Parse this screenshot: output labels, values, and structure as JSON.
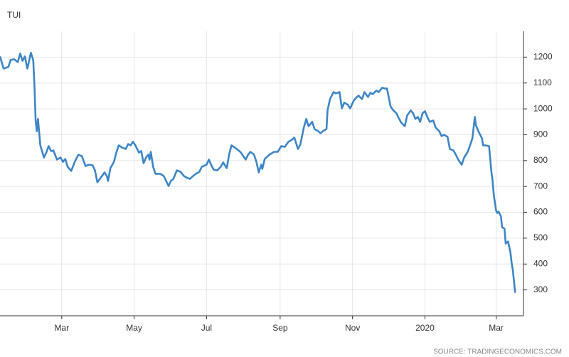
{
  "chart_data": {
    "type": "line",
    "title": "TUI",
    "source": "SOURCE: TRADINGECONOMICS.COM",
    "x": [
      7,
      10,
      14,
      16,
      19,
      22,
      24,
      26,
      28,
      30,
      31,
      33,
      35,
      36,
      37,
      38,
      39,
      41,
      44,
      46,
      48,
      50,
      52,
      55,
      58,
      60,
      62,
      64,
      67,
      70,
      73,
      76,
      79,
      82,
      85,
      87,
      89,
      92,
      95,
      97,
      98,
      100,
      103,
      105,
      107,
      110,
      113,
      115,
      117,
      119,
      121,
      124,
      126,
      128,
      130,
      132,
      133,
      134,
      136,
      138,
      142,
      145,
      147,
      149,
      151,
      153,
      156,
      159,
      162,
      164,
      167,
      169,
      172,
      175,
      177,
      181,
      183,
      185,
      187,
      190,
      193,
      195,
      198,
      200,
      202,
      205,
      208,
      210,
      212,
      214,
      216,
      218,
      221,
      223,
      225,
      227,
      228,
      230,
      234,
      238,
      241,
      244,
      247,
      250,
      253,
      255,
      258,
      260,
      263,
      265,
      267,
      270,
      272,
      275,
      277,
      279,
      282,
      283,
      285,
      288,
      290,
      293,
      295,
      297,
      300,
      302,
      305,
      307,
      309,
      312,
      314,
      317,
      319,
      321,
      324,
      326,
      329,
      331,
      333,
      336,
      338,
      341,
      343,
      345,
      348,
      350,
      353,
      355,
      357,
      359,
      361,
      363,
      365,
      367,
      369,
      372,
      374,
      377,
      379,
      381,
      384,
      386,
      389,
      391,
      393,
      396,
      398,
      401,
      403,
      404,
      405,
      407,
      408,
      410,
      413,
      414,
      416,
      419,
      420,
      421,
      422,
      423,
      425,
      426,
      427,
      429,
      430,
      432,
      433,
      435,
      437,
      438,
      439,
      441
    ],
    "series": [
      {
        "name": "TUI",
        "color": "#3d85c6",
        "values": [
          1203,
          1156,
          1162,
          1189,
          1192,
          1181,
          1214,
          1186,
          1203,
          1156,
          1175,
          1217,
          1189,
          1093,
          955,
          914,
          961,
          859,
          812,
          831,
          856,
          837,
          839,
          804,
          812,
          795,
          806,
          776,
          760,
          795,
          823,
          817,
          779,
          784,
          782,
          762,
          716,
          735,
          754,
          740,
          721,
          771,
          795,
          831,
          859,
          850,
          845,
          864,
          859,
          873,
          859,
          831,
          837,
          790,
          812,
          823,
          804,
          834,
          776,
          749,
          749,
          740,
          721,
          702,
          721,
          729,
          762,
          757,
          740,
          735,
          729,
          738,
          749,
          757,
          776,
          784,
          804,
          782,
          765,
          762,
          776,
          793,
          771,
          823,
          859,
          850,
          839,
          831,
          817,
          804,
          823,
          834,
          823,
          795,
          754,
          784,
          768,
          806,
          823,
          834,
          834,
          856,
          853,
          873,
          881,
          889,
          845,
          862,
          928,
          961,
          933,
          950,
          922,
          914,
          906,
          914,
          922,
          996,
          1038,
          1065,
          1060,
          1065,
          1002,
          1024,
          1016,
          1002,
          1032,
          1043,
          1051,
          1038,
          1065,
          1046,
          1062,
          1057,
          1071,
          1065,
          1082,
          1079,
          1079,
          1010,
          996,
          983,
          963,
          947,
          933,
          974,
          994,
          983,
          961,
          969,
          950,
          983,
          991,
          969,
          950,
          955,
          928,
          914,
          895,
          900,
          892,
          845,
          839,
          823,
          804,
          784,
          812,
          834,
          859,
          873,
          886,
          969,
          936,
          914,
          886,
          859,
          859,
          856,
          804,
          757,
          721,
          666,
          606,
          597,
          603,
          584,
          542,
          537,
          479,
          487,
          446,
          405,
          377,
          289
        ]
      }
    ],
    "xlim": [
      7,
      448
    ],
    "xticks": [
      {
        "value": 59,
        "label": "Mar"
      },
      {
        "value": 120,
        "label": "May"
      },
      {
        "value": 181,
        "label": "Jul"
      },
      {
        "value": 243,
        "label": "Sep"
      },
      {
        "value": 304,
        "label": "Nov"
      },
      {
        "value": 365,
        "label": "2020"
      },
      {
        "value": 425,
        "label": "Mar"
      }
    ],
    "ylim": [
      200,
      1300
    ],
    "yticks": [
      300,
      400,
      500,
      600,
      700,
      800,
      900,
      1000,
      1100,
      1200
    ],
    "grid": true
  }
}
